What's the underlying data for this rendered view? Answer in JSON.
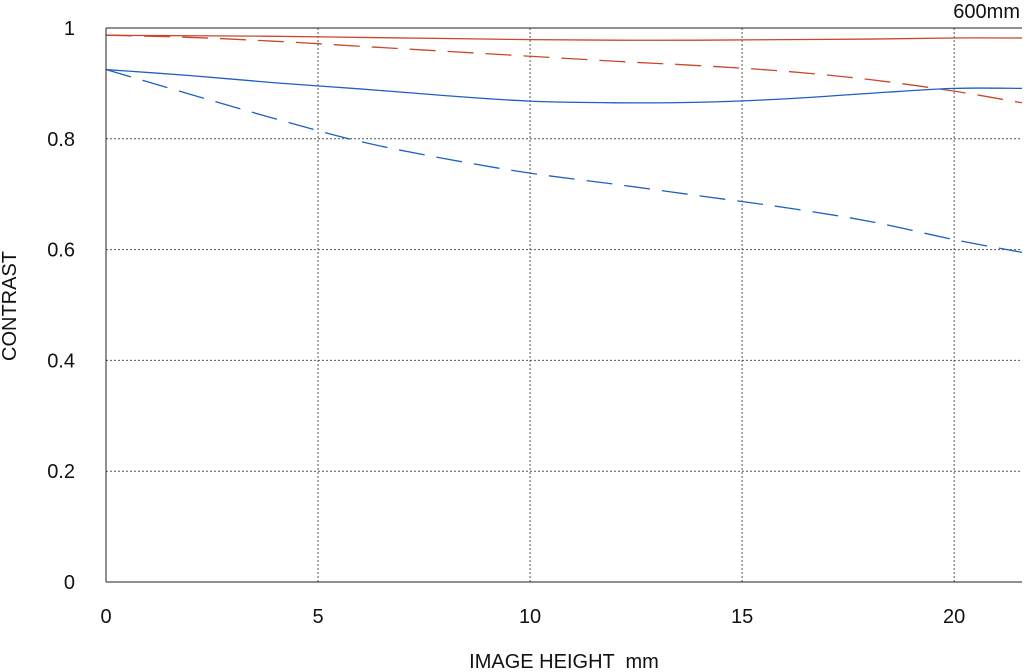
{
  "chart_data": {
    "type": "line",
    "annotation": "600mm",
    "xlabel": "IMAGE HEIGHT  mm",
    "ylabel": "CONTRAST",
    "xlim": [
      0,
      21.6
    ],
    "ylim": [
      0,
      1
    ],
    "xticks": [
      0,
      5,
      10,
      15,
      20
    ],
    "yticks": [
      0,
      0.2,
      0.4,
      0.6,
      0.8,
      1
    ],
    "ytick_labels": [
      "0",
      "0.2",
      "0.4",
      "0.6",
      "0.8",
      "1"
    ],
    "grid": true,
    "colors": {
      "red": "#c8482c",
      "blue": "#1f5fc4",
      "grid": "#555555",
      "axis": "#222222"
    },
    "series": [
      {
        "color": "red",
        "style": "solid",
        "x": [
          0,
          2,
          4,
          6,
          8,
          10,
          12,
          14,
          16,
          18,
          20,
          21.6
        ],
        "y": [
          0.987,
          0.986,
          0.985,
          0.983,
          0.981,
          0.979,
          0.978,
          0.978,
          0.979,
          0.98,
          0.982,
          0.982
        ]
      },
      {
        "color": "red",
        "style": "dashed",
        "x": [
          0,
          2,
          4,
          6,
          8,
          10,
          12,
          14,
          16,
          18,
          20,
          21.6
        ],
        "y": [
          0.987,
          0.983,
          0.976,
          0.967,
          0.958,
          0.949,
          0.94,
          0.932,
          0.922,
          0.907,
          0.886,
          0.865
        ]
      },
      {
        "color": "blue",
        "style": "solid",
        "x": [
          0,
          2,
          4,
          6,
          8,
          10,
          12,
          14,
          16,
          18,
          20,
          21.6
        ],
        "y": [
          0.925,
          0.914,
          0.901,
          0.89,
          0.878,
          0.868,
          0.865,
          0.866,
          0.872,
          0.882,
          0.891,
          0.891
        ]
      },
      {
        "color": "blue",
        "style": "dashed",
        "x": [
          0,
          2,
          4,
          6,
          8,
          10,
          12,
          14,
          16,
          18,
          20,
          21.6
        ],
        "y": [
          0.925,
          0.88,
          0.836,
          0.795,
          0.764,
          0.738,
          0.718,
          0.697,
          0.676,
          0.651,
          0.618,
          0.595
        ]
      }
    ]
  }
}
